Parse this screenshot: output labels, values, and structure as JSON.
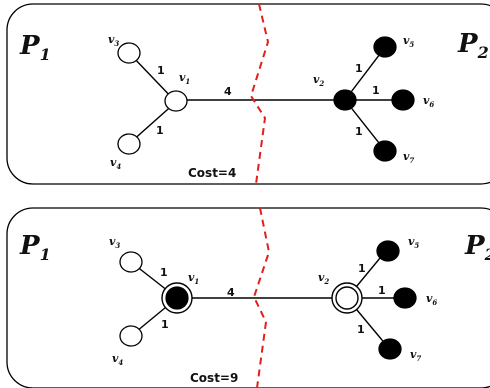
{
  "panels": [
    {
      "left_partition": {
        "letter": "P",
        "sub": "1"
      },
      "right_partition": {
        "letter": "P",
        "sub": "2"
      },
      "cost": "Cost=4",
      "vertices": [
        {
          "letter": "v",
          "sub": "1"
        },
        {
          "letter": "v",
          "sub": "2"
        },
        {
          "letter": "v",
          "sub": "3"
        },
        {
          "letter": "v",
          "sub": "4"
        },
        {
          "letter": "v",
          "sub": "5"
        },
        {
          "letter": "v",
          "sub": "6"
        },
        {
          "letter": "v",
          "sub": "7"
        }
      ],
      "edge_weights": {
        "v1_v3": "1",
        "v1_v4": "1",
        "v1_v2": "4",
        "v2_v5": "1",
        "v2_v6": "1",
        "v2_v7": "1"
      },
      "node_states": {
        "v1": "white",
        "v2": "black"
      }
    },
    {
      "left_partition": {
        "letter": "P",
        "sub": "1"
      },
      "right_partition": {
        "letter": "P",
        "sub": "2"
      },
      "cost": "Cost=9",
      "vertices": [
        {
          "letter": "v",
          "sub": "1"
        },
        {
          "letter": "v",
          "sub": "2"
        },
        {
          "letter": "v",
          "sub": "3"
        },
        {
          "letter": "v",
          "sub": "4"
        },
        {
          "letter": "v",
          "sub": "5"
        },
        {
          "letter": "v",
          "sub": "6"
        },
        {
          "letter": "v",
          "sub": "7"
        }
      ],
      "edge_weights": {
        "v1_v3": "1",
        "v1_v4": "1",
        "v1_v2": "4",
        "v2_v5": "1",
        "v2_v6": "1",
        "v2_v7": "1"
      },
      "node_states": {
        "v1": "black-ring",
        "v2": "white-ring"
      }
    }
  ],
  "colors": {
    "cut_line": "#e0201b",
    "node_black": "#000000",
    "node_white": "#ffffff",
    "stroke": "#000000"
  }
}
